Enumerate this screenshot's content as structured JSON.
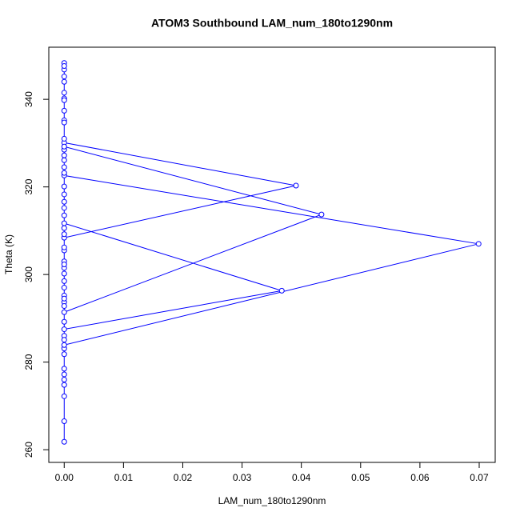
{
  "chart_data": {
    "type": "line-points",
    "title": "ATOM3 Southbound LAM_num_180to1290nm",
    "x_label": "LAM_num_180to1290nm",
    "y_label": "Theta (K)",
    "xlim": [
      -0.0026,
      0.0727
    ],
    "ylim": [
      257.1,
      351.9
    ],
    "xticks": [
      {
        "value": 0,
        "label": "0.00"
      },
      {
        "value": 0.01,
        "label": "0.01"
      },
      {
        "value": 0.02,
        "label": "0.02"
      },
      {
        "value": 0.03,
        "label": "0.03"
      },
      {
        "value": 0.04,
        "label": "0.04"
      },
      {
        "value": 0.05,
        "label": "0.05"
      },
      {
        "value": 0.06,
        "label": "0.06"
      },
      {
        "value": 0.07,
        "label": "0.07"
      }
    ],
    "yticks": [
      260,
      280,
      300,
      320,
      340
    ],
    "series": [
      {
        "color": "#0000ff",
        "x": [
          0,
          0,
          0,
          0,
          0,
          0,
          0,
          0,
          0,
          0,
          0.0699,
          0,
          0,
          0,
          0,
          0,
          0,
          0.0391,
          0,
          0,
          0,
          0,
          0,
          0,
          0,
          0,
          0.0434,
          0,
          0,
          0,
          0,
          0,
          0,
          0,
          0,
          0,
          0,
          0,
          0,
          0,
          0,
          0,
          0,
          0,
          0,
          0,
          0.0367,
          0,
          0,
          0,
          0,
          0,
          0,
          0,
          0,
          0,
          0,
          0,
          0,
          0
        ],
        "values": [
          261.8,
          266.5,
          272.2,
          274.8,
          276,
          277.2,
          278.5,
          281.8,
          283.1,
          283.9,
          307.0,
          322.6,
          323.2,
          324.5,
          326.1,
          328.5,
          330.1,
          320.3,
          308.4,
          305.5,
          303,
          301.5,
          300.2,
          295.2,
          293.7,
          291.4,
          313.7,
          329.2,
          331,
          335.2,
          337.4,
          340.2,
          341.5,
          345.2,
          346.8,
          348.3,
          347.6,
          344,
          339.8,
          334.7,
          327.2,
          320.1,
          316.6,
          315.2,
          313.5,
          311.7,
          296.3,
          287.5,
          286,
          285.1,
          289.2,
          292.8,
          294.5,
          297,
          298.5,
          302.3,
          306.2,
          309.2,
          310.6,
          318.3
        ]
      }
    ]
  }
}
